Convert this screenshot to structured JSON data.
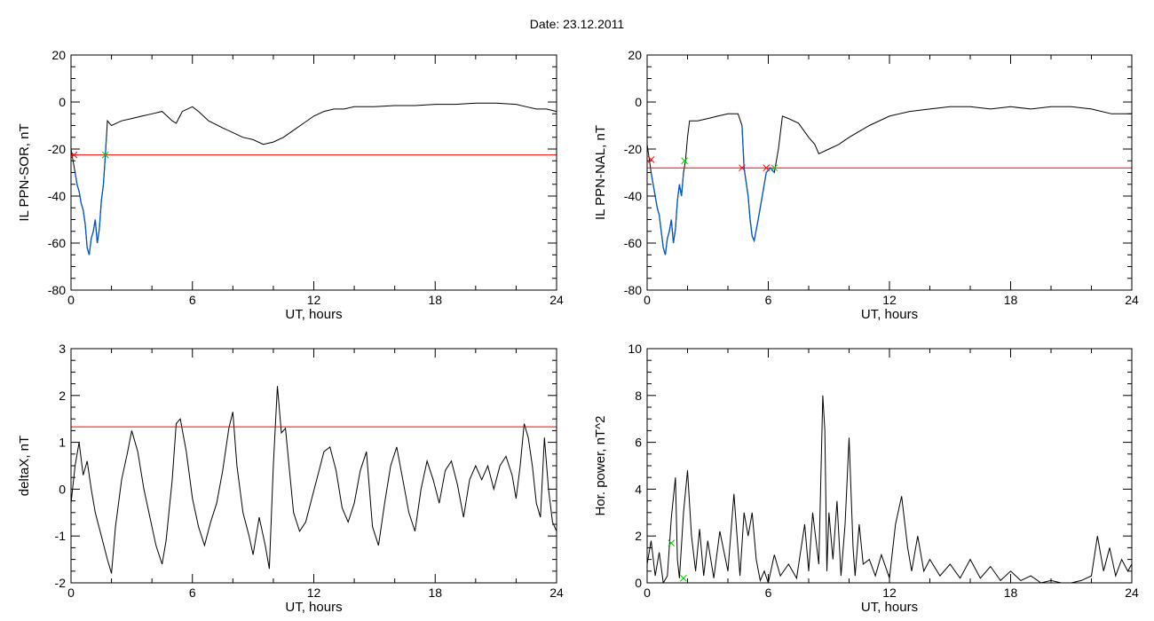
{
  "page": {
    "title": "Date:  23.12.2011"
  },
  "colors": {
    "threshold": "#ff0000",
    "highlight": "#0055cc",
    "marker_red": "#ff0000",
    "marker_green": "#00cc00",
    "trace": "#000000"
  },
  "chart_data": [
    {
      "id": "sor",
      "type": "line",
      "xlabel": "UT, hours",
      "ylabel": "IL PPN-SOR, nT",
      "xlim": [
        0,
        24
      ],
      "ylim": [
        -80,
        20
      ],
      "xticks": [
        0,
        6,
        12,
        18,
        24
      ],
      "yticks": [
        -80,
        -60,
        -40,
        -20,
        0,
        20
      ],
      "threshold": -22.5,
      "series": [
        {
          "x": [
            0,
            0.1,
            0.2,
            0.3,
            0.4,
            0.5,
            0.6,
            0.7,
            0.8,
            0.9,
            1.0,
            1.1,
            1.2,
            1.3,
            1.4,
            1.5,
            1.6,
            1.7,
            1.75,
            1.8,
            1.9,
            2.0,
            2.5,
            3.0,
            3.5,
            4.0,
            4.5,
            5.0,
            5.2,
            5.5,
            6.0,
            6.3,
            6.8,
            7.5,
            8.0,
            8.5,
            9.0,
            9.5,
            10.0,
            10.5,
            11.0,
            11.5,
            12.0,
            12.5,
            13.0,
            13.5,
            14.0,
            15.0,
            16.0,
            17.0,
            18.0,
            19.0,
            20.0,
            21.0,
            22.0,
            22.5,
            23.0,
            23.5,
            24.0
          ],
          "y": [
            -20,
            -25,
            -30,
            -35,
            -38,
            -43,
            -46,
            -52,
            -62,
            -65,
            -58,
            -55,
            -50,
            -60,
            -54,
            -42,
            -35,
            -22.5,
            -15,
            -8,
            -9,
            -10,
            -8,
            -7,
            -6,
            -5,
            -4,
            -8,
            -9,
            -4,
            -2,
            -4,
            -8,
            -11,
            -13,
            -15,
            -16,
            -18,
            -17,
            -15,
            -12,
            -9,
            -6,
            -4,
            -3,
            -3,
            -2,
            -2,
            -1.5,
            -1.5,
            -1,
            -1,
            -0.5,
            -0.5,
            -1,
            -2,
            -3,
            -3,
            -4
          ],
          "highlight_range": [
            0.15,
            1.75
          ]
        }
      ],
      "markers": [
        {
          "x": 0.15,
          "y": -22.5,
          "color": "red"
        },
        {
          "x": 1.7,
          "y": -22.5,
          "color": "green"
        }
      ]
    },
    {
      "id": "nal",
      "type": "line",
      "xlabel": "UT, hours",
      "ylabel": "IL PPN-NAL, nT",
      "xlim": [
        0,
        24
      ],
      "ylim": [
        -80,
        20
      ],
      "xticks": [
        0,
        6,
        12,
        18,
        24
      ],
      "yticks": [
        -80,
        -60,
        -40,
        -20,
        0,
        20
      ],
      "threshold": -28,
      "series": [
        {
          "x": [
            0,
            0.1,
            0.2,
            0.3,
            0.4,
            0.5,
            0.6,
            0.7,
            0.8,
            0.9,
            1.0,
            1.1,
            1.2,
            1.3,
            1.4,
            1.5,
            1.6,
            1.7,
            1.8,
            1.9,
            2.0,
            2.1,
            2.5,
            3.0,
            3.5,
            4.0,
            4.5,
            4.7,
            4.8,
            5.0,
            5.1,
            5.2,
            5.3,
            5.5,
            5.7,
            5.9,
            6.1,
            6.3,
            6.5,
            6.7,
            7.0,
            7.5,
            8.0,
            8.3,
            8.5,
            9.0,
            9.5,
            10.0,
            11.0,
            12.0,
            13.0,
            14.0,
            15.0,
            16.0,
            17.0,
            18.0,
            19.0,
            20.0,
            21.0,
            22.0,
            23.0,
            24.0
          ],
          "y": [
            -18,
            -24,
            -30,
            -35,
            -40,
            -45,
            -48,
            -55,
            -62,
            -65,
            -58,
            -55,
            -50,
            -60,
            -54,
            -42,
            -35,
            -40,
            -30,
            -25,
            -15,
            -8,
            -8,
            -7,
            -6,
            -5,
            -5,
            -10,
            -28,
            -40,
            -50,
            -57,
            -59,
            -50,
            -40,
            -30,
            -28,
            -30,
            -20,
            -6,
            -7,
            -9,
            -15,
            -18,
            -22,
            -20,
            -18,
            -15,
            -10,
            -6,
            -4,
            -3,
            -2,
            -2,
            -3,
            -2,
            -3,
            -2,
            -2,
            -3,
            -5,
            -5
          ],
          "highlight_range": [
            0.15,
            1.85
          ]
        }
      ],
      "highlight_range_2": [
        4.7,
        6.3
      ],
      "markers": [
        {
          "x": 0.2,
          "y": -24.5,
          "color": "red"
        },
        {
          "x": 1.85,
          "y": -25,
          "color": "green"
        },
        {
          "x": 4.7,
          "y": -28,
          "color": "red"
        },
        {
          "x": 5.9,
          "y": -28,
          "color": "red"
        },
        {
          "x": 6.3,
          "y": -28,
          "color": "green"
        }
      ]
    },
    {
      "id": "deltax",
      "type": "line",
      "xlabel": "UT, hours",
      "ylabel": "deltaX, nT",
      "xlim": [
        0,
        24
      ],
      "ylim": [
        -2,
        3
      ],
      "xticks": [
        0,
        6,
        12,
        18,
        24
      ],
      "yticks": [
        -2,
        -1,
        0,
        1,
        2,
        3
      ],
      "threshold": 1.33,
      "series": [
        {
          "x": [
            0,
            0.2,
            0.4,
            0.6,
            0.8,
            1.0,
            1.2,
            1.5,
            1.8,
            2.0,
            2.2,
            2.5,
            2.8,
            3.0,
            3.3,
            3.6,
            3.9,
            4.2,
            4.5,
            4.7,
            5.0,
            5.2,
            5.4,
            5.7,
            6.0,
            6.3,
            6.6,
            6.9,
            7.2,
            7.5,
            7.8,
            8.0,
            8.2,
            8.5,
            8.8,
            9.0,
            9.3,
            9.6,
            9.8,
            10.0,
            10.2,
            10.4,
            10.6,
            10.8,
            11.0,
            11.3,
            11.6,
            11.9,
            12.2,
            12.5,
            12.8,
            13.1,
            13.4,
            13.7,
            14.0,
            14.3,
            14.6,
            14.9,
            15.2,
            15.5,
            15.8,
            16.1,
            16.4,
            16.7,
            17.0,
            17.3,
            17.6,
            17.9,
            18.2,
            18.5,
            18.8,
            19.1,
            19.4,
            19.7,
            20.0,
            20.3,
            20.6,
            20.9,
            21.2,
            21.5,
            21.8,
            22.0,
            22.2,
            22.4,
            22.6,
            22.8,
            23.0,
            23.2,
            23.4,
            23.6,
            23.8,
            24.0
          ],
          "y": [
            -0.3,
            0.5,
            1.0,
            0.3,
            0.6,
            0.0,
            -0.5,
            -1.0,
            -1.5,
            -1.8,
            -0.8,
            0.2,
            0.8,
            1.25,
            0.8,
            0.0,
            -0.6,
            -1.2,
            -1.6,
            -1.1,
            0.2,
            1.4,
            1.5,
            0.8,
            -0.2,
            -0.8,
            -1.2,
            -0.7,
            -0.3,
            0.4,
            1.3,
            1.65,
            0.5,
            -0.5,
            -1.0,
            -1.4,
            -0.6,
            -1.2,
            -1.7,
            0.5,
            2.2,
            1.2,
            1.3,
            0.4,
            -0.5,
            -0.9,
            -0.7,
            -0.2,
            0.3,
            0.8,
            0.9,
            0.4,
            -0.4,
            -0.7,
            -0.3,
            0.4,
            0.8,
            -0.8,
            -1.2,
            -0.3,
            0.5,
            0.9,
            0.2,
            -0.5,
            -0.9,
            0.0,
            0.6,
            0.2,
            -0.3,
            0.4,
            0.6,
            0.1,
            -0.6,
            0.2,
            0.5,
            0.2,
            0.5,
            0.0,
            0.5,
            0.7,
            0.3,
            -0.2,
            0.5,
            1.4,
            1.1,
            0.5,
            -0.3,
            -0.6,
            1.1,
            0.0,
            -0.7,
            -0.9
          ]
        }
      ]
    },
    {
      "id": "horpower",
      "type": "line",
      "xlabel": "UT, hours",
      "ylabel": "Hor. power, nT^2",
      "xlim": [
        0,
        24
      ],
      "ylim": [
        0,
        10
      ],
      "xticks": [
        0,
        6,
        12,
        18,
        24
      ],
      "yticks": [
        0,
        2,
        4,
        6,
        8,
        10
      ],
      "series": [
        {
          "x": [
            0,
            0.2,
            0.4,
            0.6,
            0.8,
            1.0,
            1.2,
            1.4,
            1.5,
            1.6,
            1.8,
            2.0,
            2.2,
            2.4,
            2.6,
            2.8,
            3.0,
            3.3,
            3.6,
            4.0,
            4.3,
            4.6,
            4.8,
            5.0,
            5.2,
            5.4,
            5.6,
            5.8,
            6.0,
            6.3,
            6.6,
            7.0,
            7.4,
            7.8,
            8.0,
            8.2,
            8.5,
            8.7,
            8.8,
            8.9,
            9.0,
            9.2,
            9.4,
            9.6,
            9.8,
            10.0,
            10.2,
            10.3,
            10.5,
            10.7,
            11.0,
            11.3,
            11.6,
            12.0,
            12.3,
            12.6,
            12.9,
            13.1,
            13.4,
            13.7,
            14.0,
            14.5,
            15.0,
            15.5,
            16.0,
            16.5,
            17.0,
            17.5,
            18.0,
            18.5,
            19.0,
            19.5,
            20.0,
            20.5,
            21.0,
            21.5,
            22.0,
            22.3,
            22.6,
            22.9,
            23.2,
            23.5,
            23.8,
            24.0
          ],
          "y": [
            0.8,
            1.8,
            0.3,
            1.3,
            0.0,
            0.3,
            2.8,
            4.5,
            1.0,
            0.2,
            3.0,
            4.8,
            2.0,
            0.5,
            2.3,
            0.3,
            1.8,
            0.2,
            2.2,
            0.5,
            3.8,
            0.3,
            3.0,
            2.0,
            3.0,
            1.0,
            0.1,
            0.5,
            0.0,
            1.2,
            0.3,
            0.8,
            0.2,
            2.5,
            0.5,
            3.0,
            0.8,
            8.0,
            6.5,
            0.5,
            3.0,
            1.0,
            3.5,
            0.3,
            2.5,
            6.2,
            1.5,
            0.3,
            2.5,
            0.8,
            1.0,
            0.3,
            1.2,
            0.2,
            2.5,
            3.7,
            1.5,
            0.5,
            2.0,
            0.5,
            1.0,
            0.3,
            0.8,
            0.2,
            1.0,
            0.2,
            0.7,
            0.1,
            0.5,
            0.1,
            0.3,
            0.0,
            0.1,
            0.0,
            0.0,
            0.1,
            0.3,
            2.0,
            0.5,
            1.5,
            0.3,
            1.0,
            0.5,
            0.8
          ]
        }
      ],
      "markers": [
        {
          "x": 1.2,
          "y": 1.7,
          "color": "green"
        },
        {
          "x": 1.8,
          "y": 0.2,
          "color": "green"
        }
      ]
    }
  ]
}
